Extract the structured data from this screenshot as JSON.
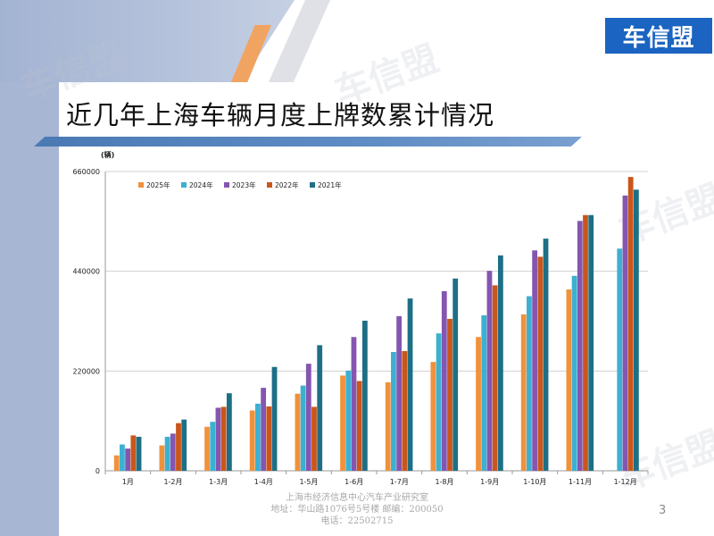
{
  "logo": "车信盟",
  "watermark_text": "车信盟",
  "title": "近几年上海车辆月度上牌数累计情况",
  "footer": {
    "line1": "上海市经济信息中心汽车产业研究室",
    "line2": "地址：华山路1076号5号楼    邮编：200050",
    "line3": "电话：22502715"
  },
  "page_number": "3",
  "colors": {
    "s2025": "#f0913c",
    "s2024": "#3cb0d0",
    "s2023": "#8456b0",
    "s2022": "#c9561a",
    "s2021": "#1d6f86"
  },
  "chart_data": {
    "type": "bar",
    "unit_label": "(辆)",
    "categories": [
      "1月",
      "1-2月",
      "1-3月",
      "1-4月",
      "1-5月",
      "1-6月",
      "1-7月",
      "1-8月",
      "1-9月",
      "1-10月",
      "1-11月",
      "1-12月"
    ],
    "yticks": [
      0,
      220000,
      440000,
      660000
    ],
    "ylim": [
      0,
      660000
    ],
    "legend_position": "top-left",
    "grid": true,
    "series": [
      {
        "name": "2025年",
        "color": "#f0913c",
        "values": [
          34000,
          56000,
          97000,
          133000,
          170000,
          210000,
          195000,
          240000,
          295000,
          345000,
          400000,
          null
        ]
      },
      {
        "name": "2024年",
        "color": "#3cb0d0",
        "values": [
          58000,
          75000,
          108000,
          148000,
          188000,
          221000,
          262000,
          303000,
          343000,
          385000,
          430000,
          490000
        ]
      },
      {
        "name": "2023年",
        "color": "#8456b0",
        "values": [
          49000,
          82000,
          139000,
          183000,
          236000,
          295000,
          341000,
          396000,
          441000,
          486000,
          551000,
          607000
        ]
      },
      {
        "name": "2022年",
        "color": "#c9561a",
        "values": [
          78000,
          105000,
          141000,
          142000,
          141000,
          198000,
          264000,
          335000,
          409000,
          472000,
          564000,
          648000
        ]
      },
      {
        "name": "2021年",
        "color": "#1d6f86",
        "values": [
          75000,
          113000,
          171000,
          229000,
          277000,
          331000,
          380000,
          424000,
          475000,
          512000,
          564000,
          620000
        ]
      }
    ]
  }
}
